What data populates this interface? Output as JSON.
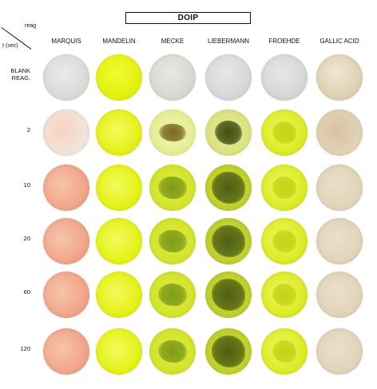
{
  "header": {
    "title": "DOIP",
    "corner_reag": "reag",
    "corner_time": "t (sec)"
  },
  "columns": [
    {
      "label": "MARQUIS"
    },
    {
      "label": "MANDELIN"
    },
    {
      "label": "MECKE"
    },
    {
      "label": "LIEBERMANN"
    },
    {
      "label": "FROEHDE"
    },
    {
      "label": "GALLIC ACID"
    }
  ],
  "rows": [
    {
      "label": "BLANK\nREAG.",
      "lines": [
        "BLANK",
        "REAG."
      ]
    },
    {
      "label": "2",
      "lines": [
        "2"
      ]
    },
    {
      "label": "10",
      "lines": [
        "10"
      ]
    },
    {
      "label": "20",
      "lines": [
        "20"
      ]
    },
    {
      "label": "60",
      "lines": [
        "60"
      ]
    },
    {
      "label": "120",
      "lines": [
        "120"
      ]
    }
  ],
  "colors": {
    "blank_grey": "#dcdcdc",
    "mandelin_yellow": "#e4f20a",
    "gallic_tan": "#e2d6bd",
    "marquis_peach": "#f2c0a8",
    "mecke_green": "#7f9c1a",
    "liebermann_dark": "#4e5e14",
    "froehde_yellow": "#cfe015"
  }
}
